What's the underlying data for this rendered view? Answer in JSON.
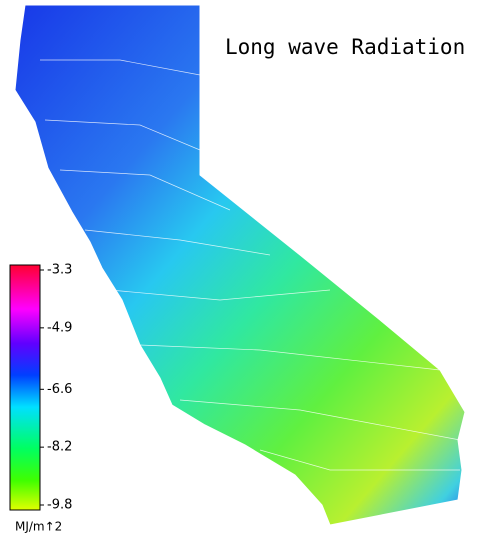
{
  "title": "Long wave Radiation",
  "colorbar": {
    "lim": [
      -9.8,
      -3.3
    ],
    "ticks": [
      -3.3,
      -4.9,
      -6.6,
      -8.2,
      -9.8
    ],
    "label": "MJ/m↑2"
  }
}
